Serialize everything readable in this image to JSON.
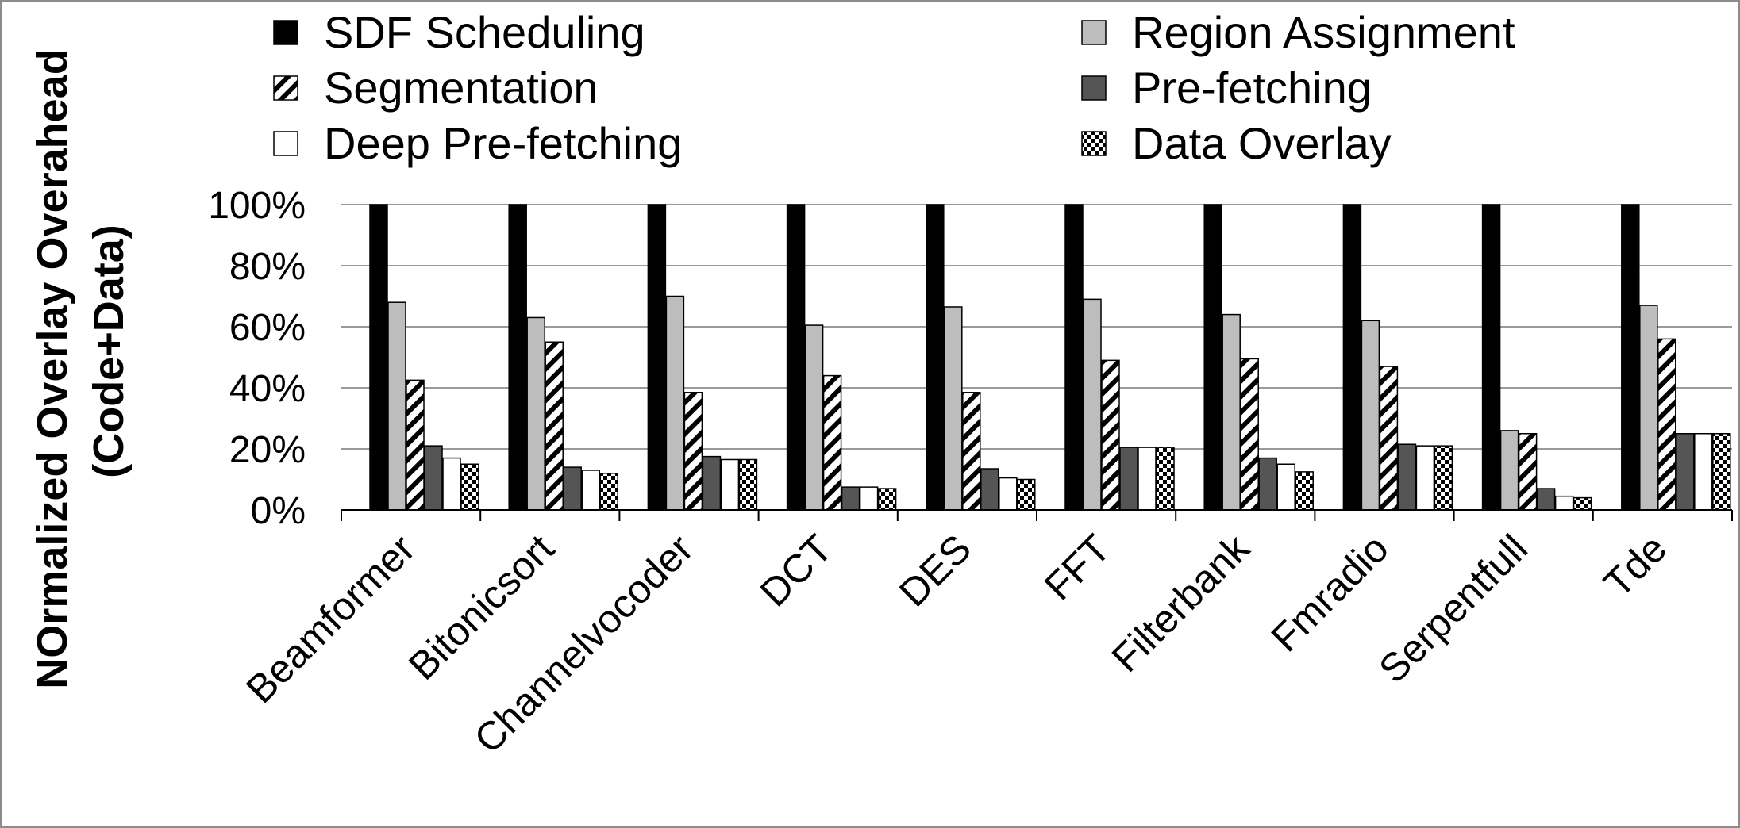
{
  "chart_data": {
    "type": "bar",
    "title": "",
    "xlabel": "",
    "ylabel": [
      "NOrmalized Overlay Overahead",
      "(Code+Data)"
    ],
    "ylim": [
      0,
      100
    ],
    "yticks": [
      "0%",
      "20%",
      "40%",
      "60%",
      "80%",
      "100%"
    ],
    "grid": "horizontal",
    "legend_position": "top",
    "categories": [
      "Beamformer",
      "Bitonicsort",
      "Channelvocoder",
      "DCT",
      "DES",
      "FFT",
      "Filterbank",
      "Fmradio",
      "Serpentfull",
      "Tde"
    ],
    "series": [
      {
        "name": "SDF Scheduling",
        "pattern": "solid-black",
        "values": [
          100,
          100,
          100,
          100,
          100,
          100,
          100,
          100,
          100,
          100
        ]
      },
      {
        "name": "Region Assignment",
        "pattern": "solid-lightgray",
        "values": [
          68,
          63,
          70,
          60.5,
          66.5,
          69,
          64,
          62,
          26,
          67
        ]
      },
      {
        "name": "Segmentation",
        "pattern": "diagonal-hatch",
        "values": [
          42.5,
          55,
          38.5,
          44,
          38.5,
          49,
          49.5,
          47,
          25,
          56
        ]
      },
      {
        "name": "Pre-fetching",
        "pattern": "solid-darkgray",
        "values": [
          21,
          14,
          17.5,
          7.5,
          13.5,
          20.5,
          17,
          21.5,
          7,
          25
        ]
      },
      {
        "name": "Deep Pre-fetching",
        "pattern": "solid-white",
        "values": [
          17,
          13,
          16.5,
          7.5,
          10.5,
          20.5,
          15,
          21,
          4.5,
          25
        ]
      },
      {
        "name": "Data Overlay",
        "pattern": "checkerboard",
        "values": [
          15,
          12,
          16.5,
          7,
          10,
          20.5,
          12.5,
          21,
          4,
          25
        ]
      }
    ],
    "colors": {
      "black": "#000000",
      "lightgray": "#bdbdbd",
      "darkgray": "#555555",
      "white": "#ffffff",
      "grid": "#9a9a9a",
      "frame": "#8c8c8c"
    }
  }
}
